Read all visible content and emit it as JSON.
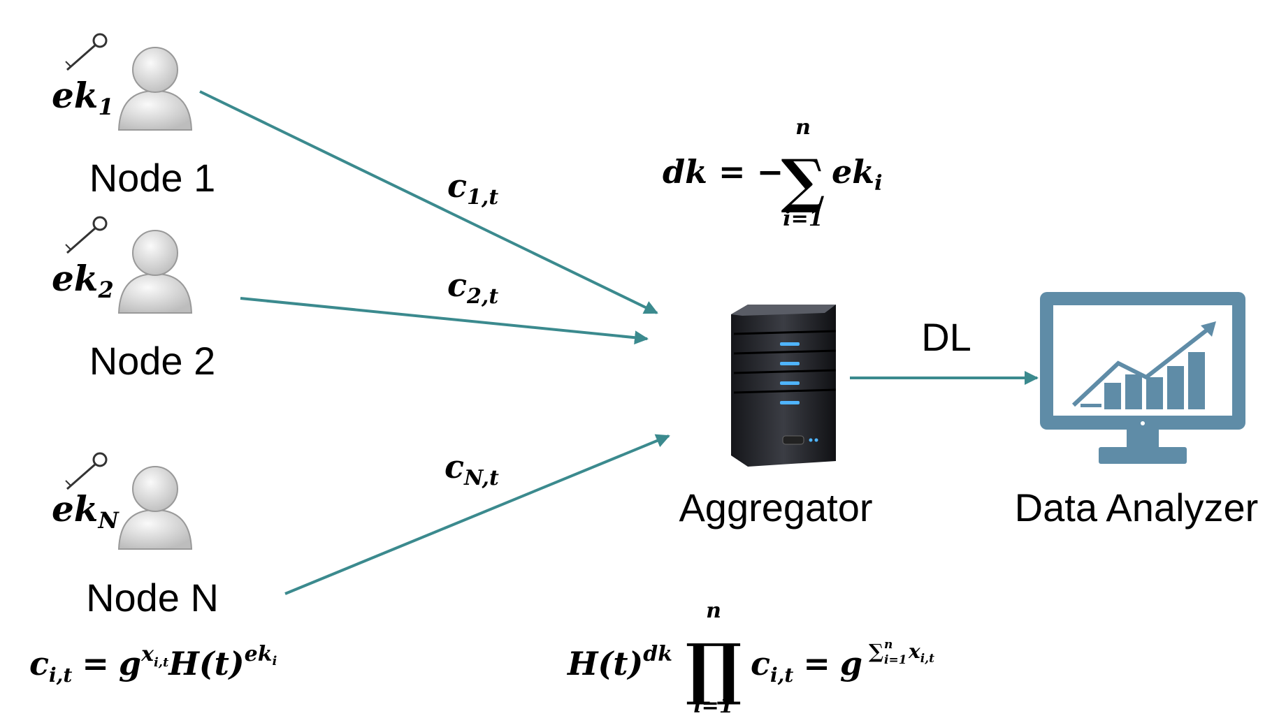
{
  "nodes": [
    {
      "label": "Node 1",
      "key": {
        "base": "ek",
        "sub": "1"
      },
      "edge_label": {
        "base": "c",
        "sub": "1,t"
      }
    },
    {
      "label": "Node 2",
      "key": {
        "base": "ek",
        "sub": "2"
      },
      "edge_label": {
        "base": "c",
        "sub": "2,t"
      }
    },
    {
      "label": "Node N",
      "key": {
        "base": "ek",
        "sub": "N"
      },
      "edge_label": {
        "base": "c",
        "sub": "N,t"
      }
    }
  ],
  "aggregator": {
    "label": "Aggregator"
  },
  "data_analyzer": {
    "label": "Data Analyzer"
  },
  "link_label": "DL",
  "formulas": {
    "decryption_key": {
      "lhs": "dk",
      "rel": "=",
      "sign": "−",
      "operator": "∑",
      "upper": "n",
      "lower": "i=1",
      "term": "ek",
      "term_sub": "i"
    },
    "ciphertext": {
      "lhs": "c",
      "lhs_sub": "i,t",
      "rel": "=",
      "base1": "g",
      "exp1": "x",
      "exp1_sub": "i,t",
      "base2": "H(t)",
      "exp2": "ek",
      "exp2_sub": "i"
    },
    "aggregate": {
      "base": "H(t)",
      "exp": "dk",
      "operator": "∏",
      "upper": "n",
      "lower": "i=1",
      "term": "c",
      "term_sub": "i,t",
      "rel": "=",
      "rhs_base": "g",
      "rhs_exp_operator": "∑",
      "rhs_exp_upper": "n",
      "rhs_exp_lower": "i=1",
      "rhs_exp_term": "x",
      "rhs_exp_term_sub": "i,t"
    }
  }
}
